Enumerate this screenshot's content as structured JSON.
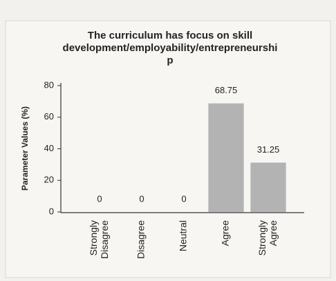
{
  "chart_data": {
    "type": "bar",
    "title": [
      "The curriculum has focus on skill",
      "development/employability/entrepreneurshi",
      "p"
    ],
    "y_label": "Parameter Values (%)",
    "categories": [
      "Strongly Disagree",
      "Disagree",
      "Neutral",
      "Agree",
      "Strongly Agree"
    ],
    "values": [
      0,
      0,
      0,
      68.75,
      31.25
    ],
    "color": "#b3b3b3",
    "ylim": [
      0,
      80
    ],
    "yticks": [
      0,
      20,
      40,
      60,
      80
    ],
    "grid": false
  }
}
